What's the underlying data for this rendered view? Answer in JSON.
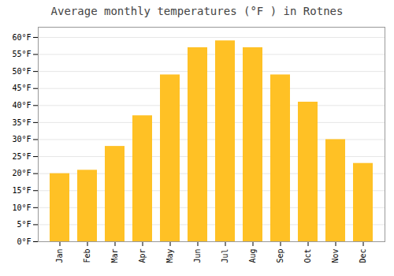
{
  "chart_data": {
    "type": "bar",
    "title": "Average monthly temperatures (°F ) in Rotnes",
    "categories": [
      "Jan",
      "Feb",
      "Mar",
      "Apr",
      "May",
      "Jun",
      "Jul",
      "Aug",
      "Sep",
      "Oct",
      "Nov",
      "Dec"
    ],
    "values": [
      20,
      21,
      28,
      37,
      49,
      57,
      59,
      57,
      49,
      41,
      30,
      23
    ],
    "color": "#FFC125",
    "ylim": [
      0,
      63
    ],
    "yticks": [
      {
        "value": 0,
        "label": "0°F"
      },
      {
        "value": 5,
        "label": "5°F"
      },
      {
        "value": 10,
        "label": "10°F"
      },
      {
        "value": 15,
        "label": "15°F"
      },
      {
        "value": 20,
        "label": "20°F"
      },
      {
        "value": 25,
        "label": "25°F"
      },
      {
        "value": 30,
        "label": "30°F"
      },
      {
        "value": 35,
        "label": "35°F"
      },
      {
        "value": 40,
        "label": "40°F"
      },
      {
        "value": 45,
        "label": "45°F"
      },
      {
        "value": 50,
        "label": "50°F"
      },
      {
        "value": 55,
        "label": "55°F"
      },
      {
        "value": 60,
        "label": "60°F"
      }
    ],
    "grid": true
  }
}
